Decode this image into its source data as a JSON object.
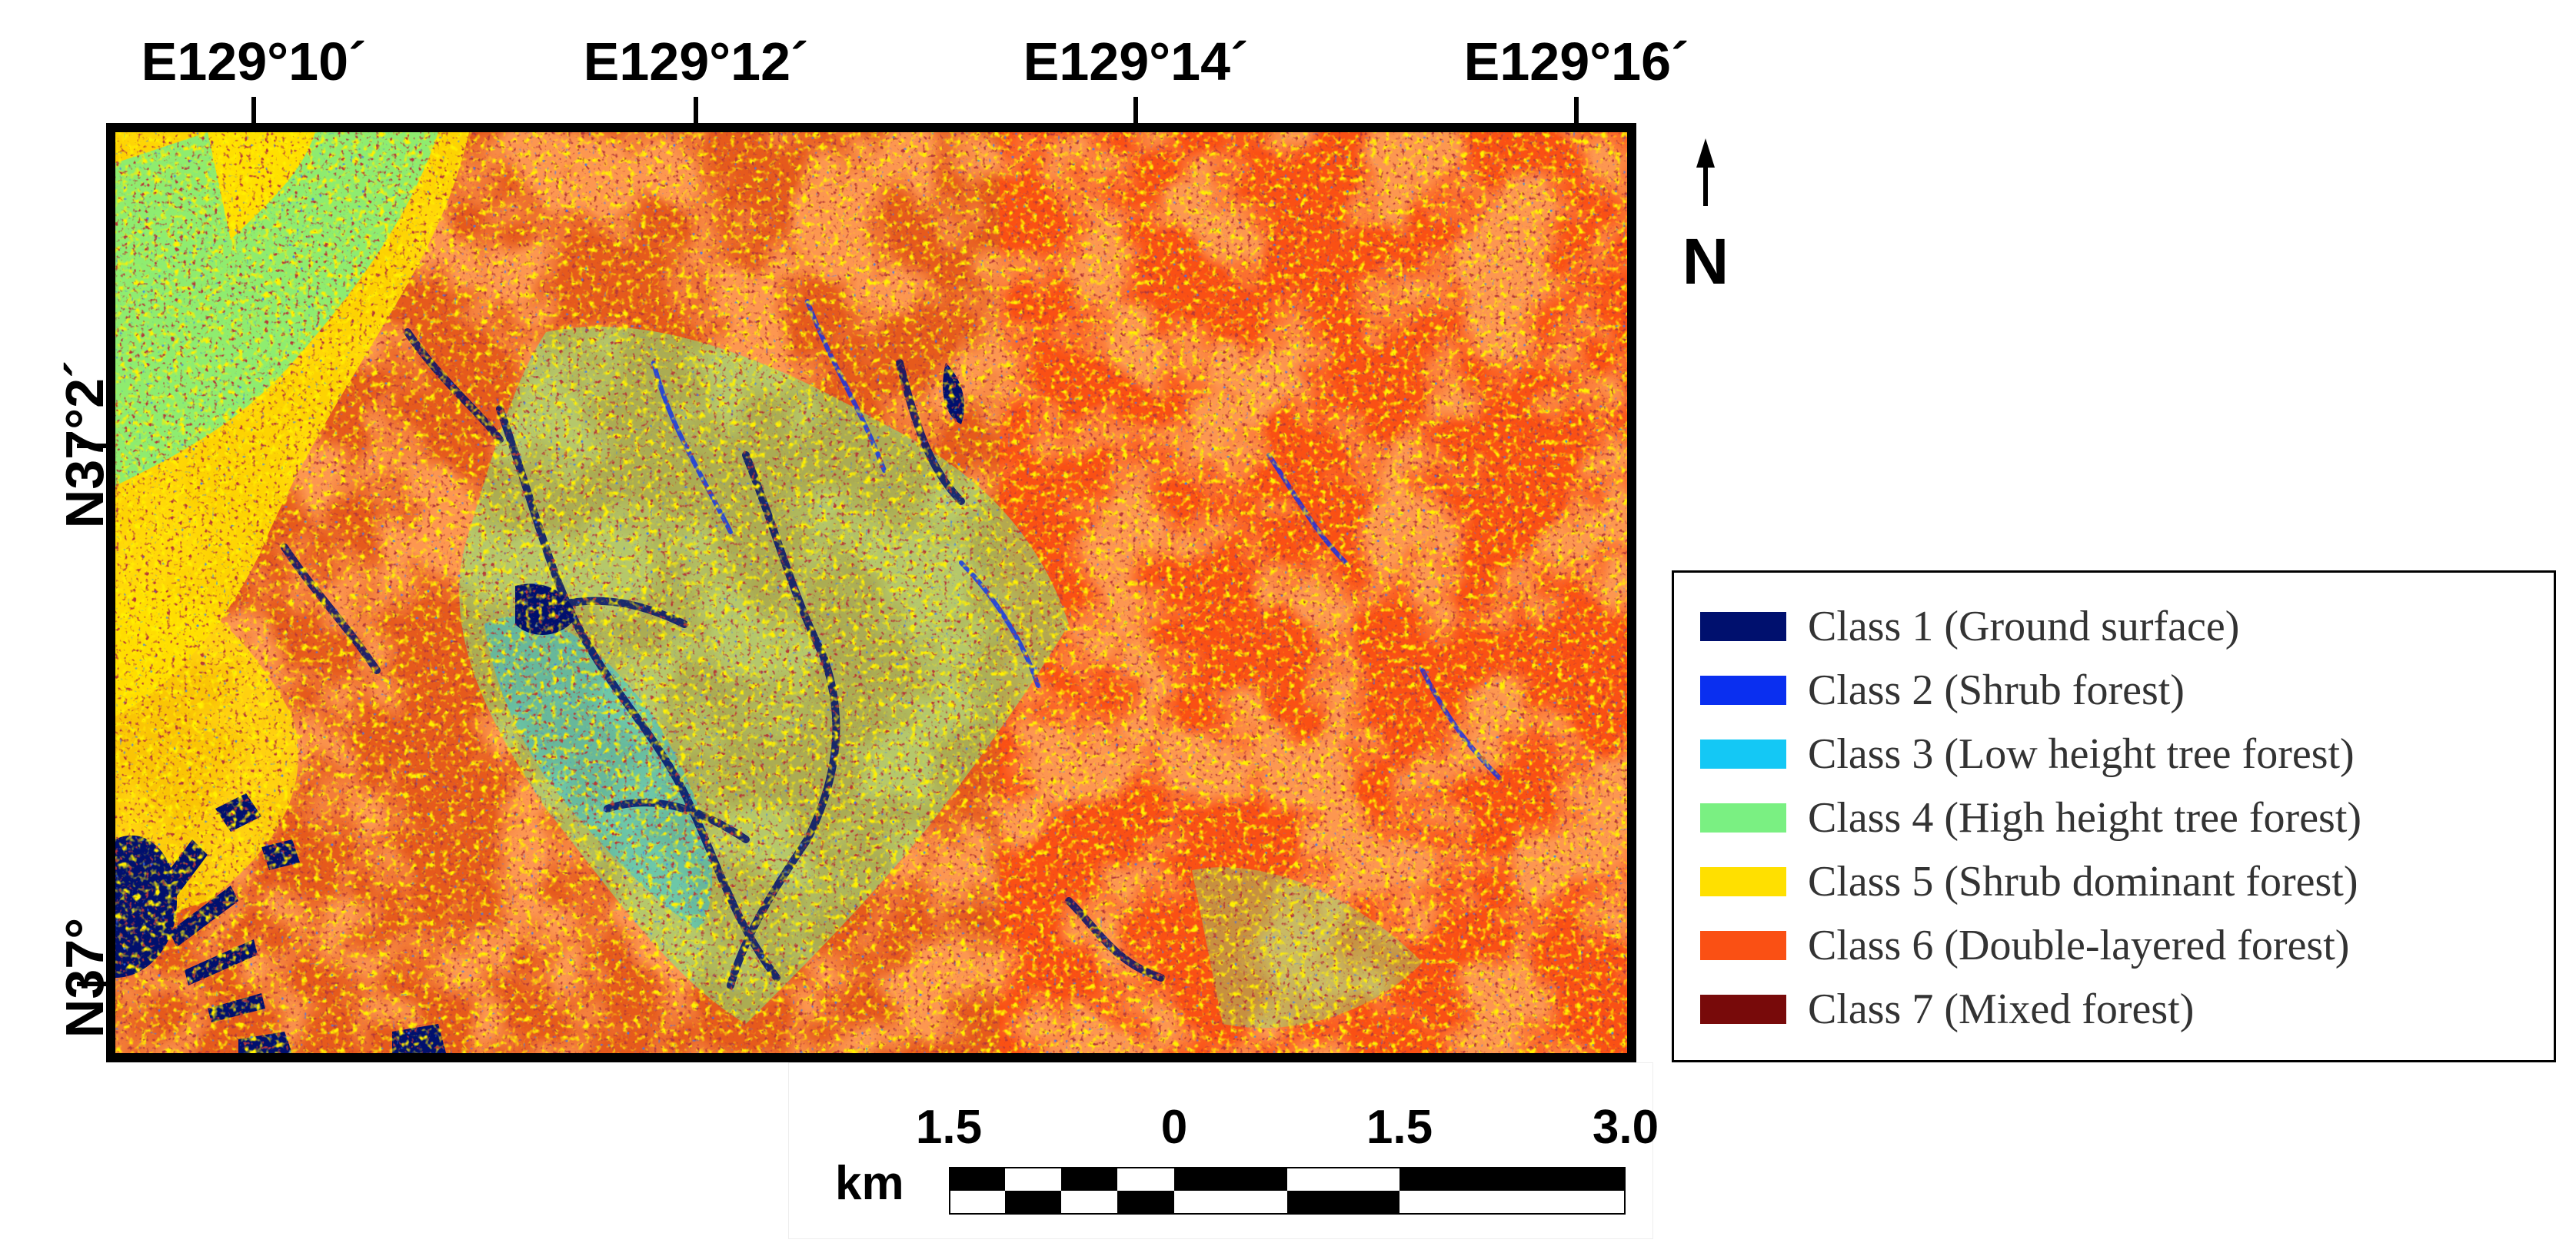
{
  "longitude_labels": [
    "E129°10´",
    "E129°12´",
    "E129°14´",
    "E129°16´"
  ],
  "latitude_labels": [
    "N37°2´",
    "N37°"
  ],
  "north_label": "N",
  "legend": [
    {
      "label": "Class 1 (Ground surface)",
      "color": "#00106e"
    },
    {
      "label": "Class 2 (Shrub forest)",
      "color": "#0a2ff0"
    },
    {
      "label": "Class 3 (Low height tree forest)",
      "color": "#14c8f5"
    },
    {
      "label": "Class 4 (High height tree forest)",
      "color": "#7af082"
    },
    {
      "label": "Class 5 (Shrub dominant forest)",
      "color": "#ffe000"
    },
    {
      "label": "Class 6 (Double-layered forest)",
      "color": "#fa5014"
    },
    {
      "label": "Class 7 (Mixed forest)",
      "color": "#780a0a"
    }
  ],
  "scale_bar": {
    "unit": "km",
    "labels": [
      "1.5",
      "0",
      "1.5",
      "3.0"
    ]
  }
}
